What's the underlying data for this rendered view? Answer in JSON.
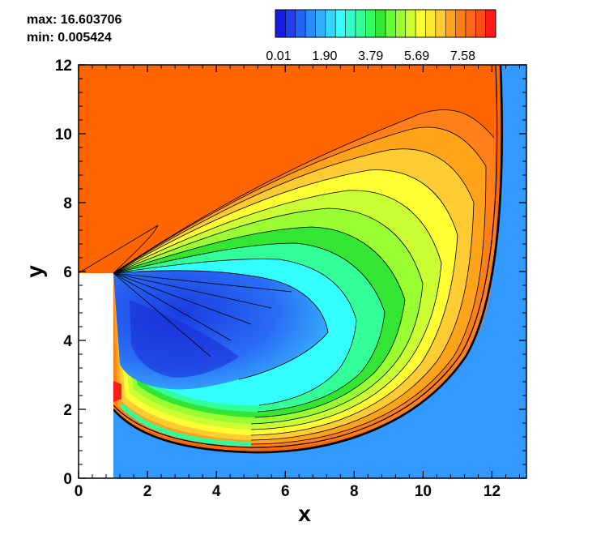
{
  "stats": {
    "max_label": "max: 16.603706",
    "min_label": "min: 0.005424"
  },
  "chart_data": {
    "type": "contour",
    "xlabel": "x",
    "ylabel": "y",
    "xlim": [
      0,
      13
    ],
    "ylim": [
      0,
      12
    ],
    "x_ticks": [
      0,
      2,
      4,
      6,
      8,
      10,
      12
    ],
    "y_ticks": [
      0,
      2,
      4,
      6,
      8,
      10,
      12
    ],
    "minor_per_major": 5,
    "grid": false,
    "value_range": {
      "max": 16.603706,
      "min": 0.005424
    },
    "colorbar": {
      "placement": "top",
      "tick_labels": [
        "0.01",
        "1.90",
        "3.79",
        "5.69",
        "7.58"
      ],
      "colors": [
        "#1a1ae6",
        "#1f3ff0",
        "#2266f5",
        "#2b8cfa",
        "#33b0ff",
        "#33d6ff",
        "#33ffff",
        "#33ffcc",
        "#33ff99",
        "#33ff66",
        "#33e633",
        "#66ff33",
        "#99ff33",
        "#ccff33",
        "#ffff33",
        "#ffe633",
        "#ffcc33",
        "#ffa31a",
        "#ff8019",
        "#ff661a",
        "#ff4d1a",
        "#ff1a1a"
      ]
    },
    "regions": {
      "freestream_color": "#ff6600",
      "downstream_color": "#3399ff",
      "body": {
        "x_min": 0,
        "x_max": 1,
        "y_min": 0,
        "y_max": 6
      }
    }
  }
}
